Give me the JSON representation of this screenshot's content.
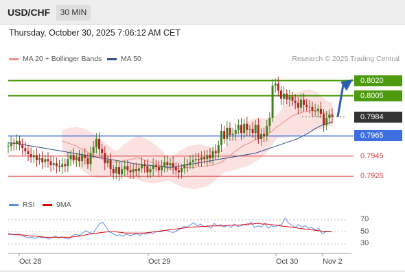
{
  "header": {
    "symbol": "USD/CHF",
    "timeframe": "30 MIN"
  },
  "datetime": "Thursday, October 30, 2025 7:06:12 AM CET",
  "legend": {
    "bb_label": "MA 20 + Bollinger Bands",
    "bb_color": "#f28b82",
    "ma50_label": "MA 50",
    "ma50_color": "#2b4d8c"
  },
  "research": "Research © 2025 Trading Central",
  "rsi_legend": {
    "rsi_label": "RSI",
    "rsi_color": "#5b8def",
    "ma9_label": "9MA",
    "ma9_color": "#e00000"
  },
  "chart_data": {
    "type": "candlestick",
    "price_range": [
      0.7915,
      0.8032
    ],
    "last_price": 0.7984,
    "levels": [
      {
        "label": "0.8020",
        "value": 0.802,
        "kind": "resistance",
        "color": "#4c9a0e"
      },
      {
        "label": "0.8005",
        "value": 0.8005,
        "kind": "resistance",
        "color": "#4c9a0e"
      },
      {
        "label": "0.7984",
        "value": 0.7984,
        "kind": "last",
        "color": "#333333"
      },
      {
        "label": "0.7965",
        "value": 0.7965,
        "kind": "pivot",
        "color": "#3c6fe0"
      },
      {
        "label": "0.7945",
        "value": 0.7945,
        "kind": "support",
        "color": "#d94040"
      },
      {
        "label": "0.7925",
        "value": 0.7925,
        "kind": "support",
        "color": "#d94040"
      }
    ],
    "x_ticks": [
      "Oct 28",
      "Oct 29",
      "Oct 30",
      "Nov 2"
    ],
    "rsi_ticks": [
      70,
      50,
      30
    ],
    "closes": [
      0.7955,
      0.7958,
      0.7957,
      0.796,
      0.7956,
      0.7953,
      0.795,
      0.7947,
      0.7944,
      0.7946,
      0.7941,
      0.7943,
      0.7939,
      0.7942,
      0.794,
      0.7936,
      0.7938,
      0.7935,
      0.7934,
      0.7937,
      0.7935,
      0.7942,
      0.7946,
      0.7941,
      0.7944,
      0.794,
      0.7946,
      0.7943,
      0.7937,
      0.7948,
      0.7954,
      0.7962,
      0.7952,
      0.7948,
      0.7938,
      0.7941,
      0.7932,
      0.7928,
      0.7934,
      0.7927,
      0.7932,
      0.7935,
      0.7931,
      0.7929,
      0.7932,
      0.793,
      0.7933,
      0.7937,
      0.7935,
      0.7929,
      0.7932,
      0.7936,
      0.7934,
      0.7931,
      0.7935,
      0.7939,
      0.7936,
      0.7938,
      0.7934,
      0.7931,
      0.7929,
      0.7933,
      0.7937,
      0.7936,
      0.7939,
      0.7941,
      0.7942,
      0.7941,
      0.7944,
      0.7942,
      0.7946,
      0.7943,
      0.795,
      0.7948,
      0.7956,
      0.797,
      0.7962,
      0.7973,
      0.7966,
      0.7967,
      0.7971,
      0.7976,
      0.7968,
      0.7977,
      0.7971,
      0.7972,
      0.7968,
      0.7976,
      0.7962,
      0.7967,
      0.7965,
      0.7975,
      0.7983,
      0.8015,
      0.8017,
      0.801,
      0.8002,
      0.8007,
      0.8001,
      0.8004,
      0.8,
      0.7998,
      0.7993,
      0.8001,
      0.7996,
      0.7994,
      0.7994,
      0.799,
      0.799,
      0.7992,
      0.7987,
      0.7976,
      0.7983,
      0.7986,
      0.7984
    ],
    "ma20": [
      0.796,
      0.7959,
      0.7958,
      0.7957,
      0.7956,
      0.7955,
      0.7953,
      0.7952,
      0.795,
      0.7949,
      0.7947,
      0.7946,
      0.7944,
      0.7943,
      0.7942,
      0.7941,
      0.794,
      0.7939,
      0.7939,
      0.7939,
      0.7939,
      0.794,
      0.7941,
      0.7941,
      0.7942,
      0.7942,
      0.7943,
      0.7943,
      0.7942,
      0.7941,
      0.794,
      0.7939,
      0.7938,
      0.7937,
      0.7936,
      0.7935,
      0.7934,
      0.7933,
      0.7932,
      0.7932,
      0.7932,
      0.7933,
      0.7933,
      0.7933,
      0.7934,
      0.7934,
      0.7934,
      0.7934,
      0.7935,
      0.7935,
      0.7935,
      0.7935,
      0.7936,
      0.7936,
      0.7937,
      0.7938,
      0.7939,
      0.7941,
      0.7943,
      0.7945,
      0.7948,
      0.795,
      0.7952,
      0.7954,
      0.7956,
      0.7957,
      0.7958,
      0.796,
      0.7961,
      0.7962,
      0.7963,
      0.7964,
      0.7966,
      0.7968,
      0.797,
      0.7973,
      0.7975,
      0.7977,
      0.7979,
      0.7981,
      0.7983,
      0.7985,
      0.7986,
      0.7987,
      0.7988,
      0.7989,
      0.7989,
      0.799,
      0.799,
      0.799,
      0.799,
      0.7988,
      0.7988,
      0.7987,
      0.7987,
      0.7986
    ],
    "ma50": [
      0.7958,
      0.7958,
      0.7957,
      0.7956,
      0.7955,
      0.7954,
      0.7953,
      0.7952,
      0.7951,
      0.795,
      0.7949,
      0.7948,
      0.7947,
      0.7946,
      0.7945,
      0.7944,
      0.7943,
      0.7942,
      0.7941,
      0.794,
      0.7939,
      0.7938,
      0.7937,
      0.7936,
      0.7936,
      0.7935,
      0.7935,
      0.7934,
      0.7934,
      0.7935,
      0.7936,
      0.7937,
      0.7938,
      0.7939,
      0.794,
      0.7941,
      0.7942,
      0.7943,
      0.7944,
      0.7945,
      0.7946,
      0.7947,
      0.7948,
      0.795,
      0.7952,
      0.7954,
      0.7956,
      0.7958,
      0.796,
      0.7962,
      0.7965,
      0.7968,
      0.7972,
      0.7975,
      0.7977,
      0.7979
    ],
    "rsi": [
      48,
      46,
      45,
      47,
      44,
      42,
      40,
      41,
      39,
      42,
      40,
      41,
      38,
      41,
      43,
      40,
      42,
      39,
      38,
      44,
      46,
      44,
      48,
      52,
      49,
      47,
      55,
      63,
      66,
      58,
      50,
      47,
      44,
      45,
      43,
      46,
      44,
      45,
      47,
      44,
      48,
      46,
      49,
      47,
      51,
      50,
      52,
      53,
      50,
      49,
      52,
      55,
      59,
      58,
      62,
      65,
      60,
      63,
      59,
      60,
      56,
      64,
      60,
      62,
      58,
      61,
      57,
      63,
      59,
      60,
      62,
      61,
      66,
      57,
      60,
      58,
      64,
      56,
      60,
      58,
      61,
      62,
      73,
      65,
      61,
      57,
      62,
      58,
      60,
      56,
      57,
      53,
      56,
      47,
      50,
      51,
      50
    ],
    "rsi_ma9": [
      46,
      46,
      45,
      45,
      44,
      43,
      43,
      42,
      41,
      41,
      41,
      41,
      41,
      41,
      42,
      43,
      44,
      46,
      47,
      48,
      49,
      50,
      50,
      50,
      49,
      48,
      48,
      48,
      48,
      48,
      49,
      50,
      51,
      52,
      53,
      54,
      55,
      56,
      57,
      58,
      58,
      59,
      59,
      60,
      60,
      60,
      60,
      61,
      61,
      61,
      62,
      63,
      63,
      64,
      63,
      63,
      62,
      61,
      60,
      59,
      58,
      57,
      56,
      55,
      54,
      53,
      52,
      51,
      51,
      50
    ]
  }
}
